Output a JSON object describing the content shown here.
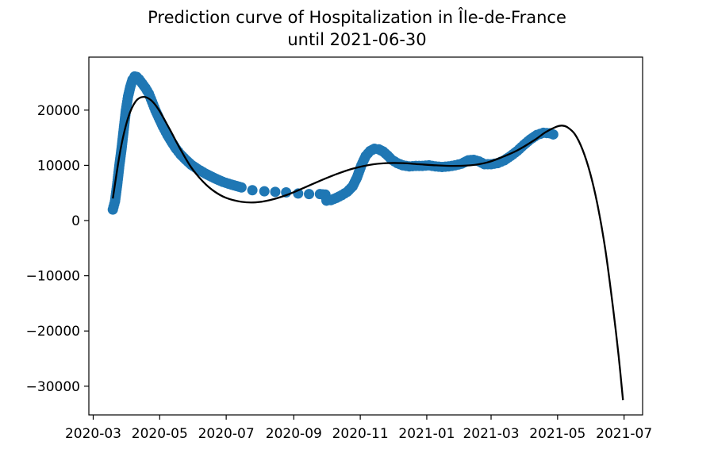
{
  "chart_data": {
    "type": "scatter",
    "title_line1": "Prediction curve of Hospitalization in Île-de-France",
    "title_line2": "until 2021-06-30",
    "xlabel": "",
    "ylabel": "",
    "grid": false,
    "xlim": [
      "2020-02-26",
      "2021-07-18"
    ],
    "ylim": [
      -35200,
      29600
    ],
    "x_ticks": [
      "2020-03",
      "2020-05",
      "2020-07",
      "2020-09",
      "2020-11",
      "2021-01",
      "2021-03",
      "2021-05",
      "2021-07"
    ],
    "y_ticks": [
      -30000,
      -20000,
      -10000,
      0,
      10000,
      20000
    ],
    "series": [
      {
        "kind": "scatter",
        "color": "#1f77b4",
        "points": [
          [
            "2020-03-19",
            2000
          ],
          [
            "2020-03-21",
            3500
          ],
          [
            "2020-03-23",
            6500
          ],
          [
            "2020-03-25",
            10000
          ],
          [
            "2020-03-27",
            13000
          ],
          [
            "2020-03-29",
            16500
          ],
          [
            "2020-03-31",
            20000
          ],
          [
            "2020-04-02",
            22500
          ],
          [
            "2020-04-04",
            24200
          ],
          [
            "2020-04-06",
            25500
          ],
          [
            "2020-04-08",
            26100
          ],
          [
            "2020-04-10",
            26000
          ],
          [
            "2020-04-12",
            25600
          ],
          [
            "2020-04-15",
            24800
          ],
          [
            "2020-04-18",
            24000
          ],
          [
            "2020-04-21",
            23000
          ],
          [
            "2020-04-24",
            21500
          ],
          [
            "2020-04-27",
            20000
          ],
          [
            "2020-04-30",
            18700
          ],
          [
            "2020-05-04",
            17000
          ],
          [
            "2020-05-08",
            15500
          ],
          [
            "2020-05-12",
            14200
          ],
          [
            "2020-05-16",
            13000
          ],
          [
            "2020-05-20",
            12000
          ],
          [
            "2020-05-25",
            11000
          ],
          [
            "2020-05-30",
            10100
          ],
          [
            "2020-06-05",
            9300
          ],
          [
            "2020-06-12",
            8500
          ],
          [
            "2020-06-20",
            7700
          ],
          [
            "2020-06-28",
            7000
          ],
          [
            "2020-07-06",
            6500
          ],
          [
            "2020-07-15",
            6000
          ],
          [
            "2020-07-25",
            5500
          ],
          [
            "2020-08-05",
            5300
          ],
          [
            "2020-08-15",
            5200
          ],
          [
            "2020-08-25",
            5100
          ],
          [
            "2020-09-05",
            4900
          ],
          [
            "2020-09-15",
            4800
          ],
          [
            "2020-09-25",
            4800
          ],
          [
            "2020-09-30",
            4700
          ],
          [
            "2020-10-01",
            3600
          ],
          [
            "2020-10-05",
            3700
          ],
          [
            "2020-10-10",
            4100
          ],
          [
            "2020-10-15",
            4600
          ],
          [
            "2020-10-20",
            5200
          ],
          [
            "2020-10-25",
            6200
          ],
          [
            "2020-10-29",
            7800
          ],
          [
            "2020-11-02",
            10000
          ],
          [
            "2020-11-06",
            11700
          ],
          [
            "2020-11-10",
            12600
          ],
          [
            "2020-11-14",
            13000
          ],
          [
            "2020-11-18",
            12900
          ],
          [
            "2020-11-22",
            12500
          ],
          [
            "2020-11-26",
            11800
          ],
          [
            "2020-11-30",
            11000
          ],
          [
            "2020-12-05",
            10400
          ],
          [
            "2020-12-10",
            10000
          ],
          [
            "2020-12-16",
            9800
          ],
          [
            "2020-12-22",
            9900
          ],
          [
            "2020-12-28",
            9900
          ],
          [
            "2021-01-03",
            10000
          ],
          [
            "2021-01-09",
            9800
          ],
          [
            "2021-01-15",
            9700
          ],
          [
            "2021-01-21",
            9800
          ],
          [
            "2021-01-27",
            10000
          ],
          [
            "2021-02-02",
            10300
          ],
          [
            "2021-02-08",
            10900
          ],
          [
            "2021-02-13",
            11000
          ],
          [
            "2021-02-18",
            10700
          ],
          [
            "2021-02-23",
            10200
          ],
          [
            "2021-03-01",
            10200
          ],
          [
            "2021-03-07",
            10400
          ],
          [
            "2021-03-13",
            10900
          ],
          [
            "2021-03-19",
            11700
          ],
          [
            "2021-03-25",
            12600
          ],
          [
            "2021-03-31",
            13700
          ],
          [
            "2021-04-06",
            14700
          ],
          [
            "2021-04-12",
            15500
          ],
          [
            "2021-04-18",
            15900
          ],
          [
            "2021-04-24",
            15800
          ],
          [
            "2021-04-27",
            15600
          ]
        ]
      },
      {
        "kind": "line",
        "color": "#000000",
        "points": [
          [
            "2020-03-19",
            4000
          ],
          [
            "2020-03-26",
            12800
          ],
          [
            "2020-04-02",
            18600
          ],
          [
            "2020-04-09",
            21600
          ],
          [
            "2020-04-16",
            22400
          ],
          [
            "2020-04-23",
            21800
          ],
          [
            "2020-04-30",
            20100
          ],
          [
            "2020-05-10",
            16600
          ],
          [
            "2020-05-20",
            12900
          ],
          [
            "2020-05-30",
            9600
          ],
          [
            "2020-06-10",
            7000
          ],
          [
            "2020-06-20",
            5300
          ],
          [
            "2020-07-01",
            4100
          ],
          [
            "2020-07-15",
            3400
          ],
          [
            "2020-07-28",
            3300
          ],
          [
            "2020-08-10",
            3700
          ],
          [
            "2020-08-25",
            4600
          ],
          [
            "2020-09-10",
            5900
          ],
          [
            "2020-09-25",
            7200
          ],
          [
            "2020-10-10",
            8400
          ],
          [
            "2020-10-25",
            9400
          ],
          [
            "2020-11-10",
            10100
          ],
          [
            "2020-11-25",
            10400
          ],
          [
            "2020-12-10",
            10400
          ],
          [
            "2020-12-25",
            10200
          ],
          [
            "2021-01-10",
            10000
          ],
          [
            "2021-01-25",
            9900
          ],
          [
            "2021-02-10",
            10000
          ],
          [
            "2021-02-25",
            10500
          ],
          [
            "2021-03-10",
            11400
          ],
          [
            "2021-03-25",
            12700
          ],
          [
            "2021-04-10",
            14600
          ],
          [
            "2021-04-20",
            16000
          ],
          [
            "2021-04-30",
            17000
          ],
          [
            "2021-05-05",
            17200
          ],
          [
            "2021-05-10",
            16900
          ],
          [
            "2021-05-17",
            15600
          ],
          [
            "2021-05-24",
            12800
          ],
          [
            "2021-05-31",
            8500
          ],
          [
            "2021-06-07",
            2500
          ],
          [
            "2021-06-14",
            -5500
          ],
          [
            "2021-06-21",
            -16000
          ],
          [
            "2021-06-26",
            -24500
          ],
          [
            "2021-06-30",
            -32500
          ]
        ]
      }
    ]
  }
}
